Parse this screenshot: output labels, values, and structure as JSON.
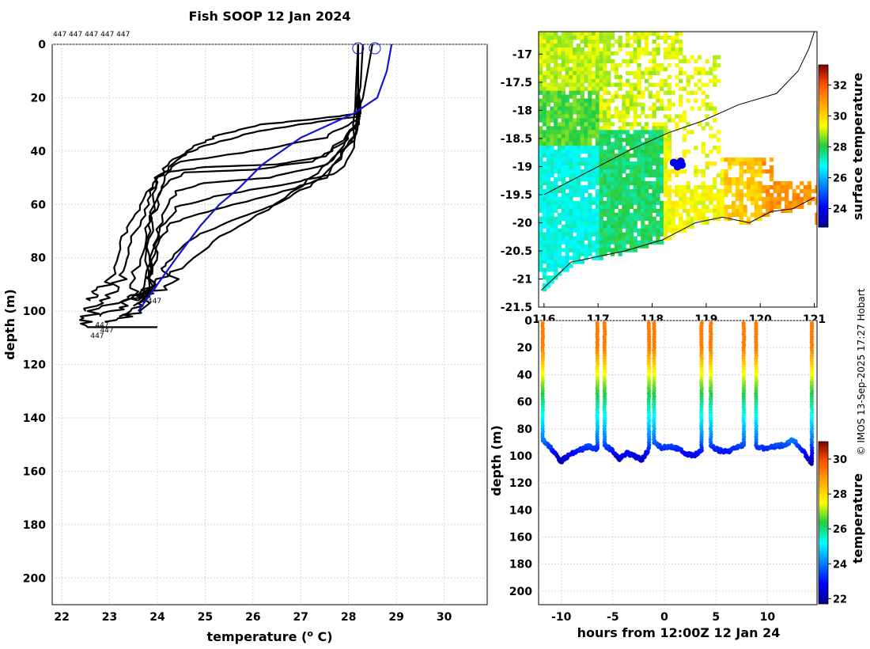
{
  "chart_data": [
    {
      "type": "line",
      "panel": "profiles",
      "title": "Fish SOOP 12 Jan 2024",
      "xlabel": "temperature (",
      "xlabel_sup": "o",
      "xlabel_end": " C)",
      "ylabel": "depth (m)",
      "xlim": [
        21.8,
        30.9
      ],
      "ylim": [
        0,
        210
      ],
      "xticks": [
        22,
        23,
        24,
        25,
        26,
        27,
        28,
        29,
        30
      ],
      "yticks": [
        0,
        20,
        40,
        60,
        80,
        100,
        120,
        140,
        160,
        180,
        200
      ],
      "top_labels": "447 447 447 447 447",
      "platform_label": "447",
      "platform_label_positions": [
        [
          23.8,
          97
        ],
        [
          22.7,
          106
        ],
        [
          22.8,
          108
        ],
        [
          22.6,
          110
        ]
      ],
      "start_markers": [
        [
          28.2,
          1.5
        ],
        [
          28.55,
          1.5
        ]
      ],
      "climatology": {
        "name": "blue reference profile",
        "color": "#1515d5",
        "points": [
          [
            28.9,
            0
          ],
          [
            28.8,
            10
          ],
          [
            28.6,
            20
          ],
          [
            28.1,
            26
          ],
          [
            27.0,
            35
          ],
          [
            26.2,
            45
          ],
          [
            25.7,
            54
          ],
          [
            25.3,
            60
          ],
          [
            24.9,
            68
          ],
          [
            24.4,
            80
          ],
          [
            24.0,
            90
          ],
          [
            23.6,
            100
          ]
        ]
      },
      "profiles": [
        [
          [
            28.2,
            0
          ],
          [
            28.2,
            26
          ],
          [
            27.3,
            28
          ],
          [
            26.2,
            30
          ],
          [
            25.3,
            34
          ],
          [
            24.8,
            38
          ],
          [
            24.3,
            44
          ],
          [
            23.9,
            52
          ],
          [
            23.6,
            62
          ],
          [
            23.3,
            72
          ],
          [
            23.0,
            86
          ],
          [
            22.8,
            92
          ],
          [
            22.6,
            96
          ]
        ],
        [
          [
            28.2,
            0
          ],
          [
            28.2,
            27
          ],
          [
            27.0,
            30
          ],
          [
            26.0,
            33
          ],
          [
            25.0,
            38
          ],
          [
            24.5,
            42
          ],
          [
            24.0,
            50
          ],
          [
            23.8,
            60
          ],
          [
            23.5,
            72
          ],
          [
            23.3,
            85
          ],
          [
            23.1,
            94
          ],
          [
            22.5,
            100
          ]
        ],
        [
          [
            28.2,
            0
          ],
          [
            28.2,
            28
          ],
          [
            27.5,
            35
          ],
          [
            26.0,
            40
          ],
          [
            24.5,
            44
          ],
          [
            24.0,
            50
          ],
          [
            23.9,
            62
          ],
          [
            23.7,
            76
          ],
          [
            23.5,
            90
          ],
          [
            23.3,
            98
          ],
          [
            22.8,
            102
          ]
        ],
        [
          [
            28.2,
            0
          ],
          [
            28.2,
            30
          ],
          [
            27.5,
            42
          ],
          [
            26.5,
            45
          ],
          [
            25.0,
            46
          ],
          [
            24.2,
            48
          ],
          [
            24.0,
            56
          ],
          [
            23.8,
            70
          ],
          [
            23.8,
            92
          ],
          [
            23.6,
            96
          ]
        ],
        [
          [
            28.2,
            0
          ],
          [
            28.2,
            30
          ],
          [
            27.8,
            38
          ],
          [
            27.2,
            44
          ],
          [
            26.0,
            47
          ],
          [
            24.6,
            48
          ],
          [
            24.2,
            52
          ],
          [
            23.9,
            64
          ],
          [
            23.8,
            82
          ],
          [
            23.7,
            100
          ],
          [
            22.9,
            104
          ]
        ],
        [
          [
            28.3,
            0
          ],
          [
            28.2,
            32
          ],
          [
            27.6,
            45
          ],
          [
            26.3,
            50
          ],
          [
            25.0,
            52
          ],
          [
            24.4,
            55
          ],
          [
            24.1,
            64
          ],
          [
            23.9,
            80
          ],
          [
            23.8,
            96
          ],
          [
            23.2,
            102
          ]
        ],
        [
          [
            28.2,
            0
          ],
          [
            28.2,
            34
          ],
          [
            27.8,
            48
          ],
          [
            26.8,
            52
          ],
          [
            25.2,
            57
          ],
          [
            24.4,
            61
          ],
          [
            24.0,
            70
          ],
          [
            23.9,
            86
          ],
          [
            23.8,
            95
          ]
        ],
        [
          [
            28.2,
            0
          ],
          [
            28.1,
            36
          ],
          [
            27.5,
            50
          ],
          [
            26.5,
            56
          ],
          [
            25.2,
            62
          ],
          [
            24.3,
            67
          ],
          [
            24.0,
            76
          ],
          [
            23.8,
            90
          ],
          [
            23.5,
            98
          ]
        ],
        [
          [
            28.2,
            0
          ],
          [
            28.2,
            32
          ],
          [
            27.8,
            42
          ],
          [
            27.3,
            52
          ],
          [
            26.5,
            60
          ],
          [
            25.6,
            66
          ],
          [
            24.8,
            72
          ],
          [
            24.2,
            82
          ],
          [
            24.0,
            88
          ],
          [
            23.6,
            96
          ]
        ],
        [
          [
            28.5,
            0
          ],
          [
            28.2,
            30
          ],
          [
            27.5,
            46
          ],
          [
            26.5,
            60
          ],
          [
            25.3,
            72
          ],
          [
            24.5,
            84
          ],
          [
            24.0,
            92
          ],
          [
            23.2,
            96
          ],
          [
            22.5,
            102
          ],
          [
            22.4,
            106
          ],
          [
            24.0,
            106
          ]
        ]
      ]
    },
    {
      "type": "heatmap",
      "panel": "map",
      "xlim": [
        115.9,
        121.05
      ],
      "ylim": [
        -21.5,
        -16.6
      ],
      "xticks": [
        116,
        117,
        118,
        119,
        120,
        121
      ],
      "yticks": [
        -17,
        -17.5,
        -18,
        -18.5,
        -19,
        -19.5,
        -20,
        -20.5,
        -21,
        -21.5
      ],
      "xtick_labels": [
        "116",
        "117",
        "118",
        "119",
        "120",
        "121"
      ],
      "ytick_labels": [
        "-17",
        "-17.5",
        "-18",
        "-18.5",
        "-19",
        "-19.5",
        "-20",
        "-20.5",
        "-21",
        "-21.5"
      ],
      "colorbar_label": "surface temperature",
      "colorbar_range": [
        22.8,
        33.3
      ],
      "colorbar_ticks": [
        24,
        26,
        28,
        30,
        32
      ],
      "track_position": [
        118.45,
        -18.95
      ],
      "coastline": [
        [
          121.0,
          -16.6
        ],
        [
          120.9,
          -16.9
        ],
        [
          120.7,
          -17.3
        ],
        [
          120.3,
          -17.7
        ],
        [
          119.6,
          -17.9
        ],
        [
          118.9,
          -18.2
        ],
        [
          118.3,
          -18.4
        ],
        [
          117.6,
          -18.7
        ],
        [
          116.8,
          -19.1
        ],
        [
          116.0,
          -19.5
        ]
      ],
      "shoreline": [
        [
          115.95,
          -21.2
        ],
        [
          116.5,
          -20.7
        ],
        [
          117.0,
          -20.6
        ],
        [
          117.5,
          -20.5
        ],
        [
          118.2,
          -20.3
        ],
        [
          118.8,
          -20.0
        ],
        [
          119.3,
          -19.9
        ],
        [
          119.8,
          -20.0
        ],
        [
          120.2,
          -19.8
        ],
        [
          120.6,
          -19.75
        ],
        [
          121.0,
          -19.55
        ]
      ]
    },
    {
      "type": "scatter",
      "panel": "time-depth",
      "xlabel": "hours from 12:00Z 12 Jan 24",
      "ylabel": "depth (m)",
      "xlim": [
        -12.2,
        14.8
      ],
      "ylim": [
        210,
        0
      ],
      "xticks": [
        -10,
        -5,
        0,
        5,
        10
      ],
      "yticks": [
        0,
        20,
        40,
        60,
        80,
        100,
        120,
        140,
        160,
        180,
        200
      ],
      "colorbar_label": "temperature",
      "colorbar_range": [
        21.7,
        31.0
      ],
      "colorbar_ticks": [
        22,
        24,
        26,
        28,
        30
      ],
      "dives": [
        {
          "start": -11.8,
          "end": -6.5,
          "bottom": [
            88,
            95,
            104,
            99,
            96,
            93,
            95
          ]
        },
        {
          "start": -5.8,
          "end": -1.5,
          "bottom": [
            92,
            96,
            102,
            98,
            100,
            103,
            95
          ]
        },
        {
          "start": -1.0,
          "end": 3.6,
          "bottom": [
            90,
            94,
            93,
            95,
            98,
            100,
            96
          ]
        },
        {
          "start": 4.5,
          "end": 7.7,
          "bottom": [
            93,
            96,
            97,
            94,
            92
          ]
        },
        {
          "start": 8.9,
          "end": 14.3,
          "bottom": [
            93,
            95,
            93,
            92,
            88,
            96,
            106
          ]
        }
      ]
    }
  ],
  "credit": "© IMOS 13-Sep-2025 17:27 Hobart",
  "colors": {
    "profile_line": "#000000",
    "climatology": "#1515d5",
    "grid": "#c8c8c8"
  }
}
